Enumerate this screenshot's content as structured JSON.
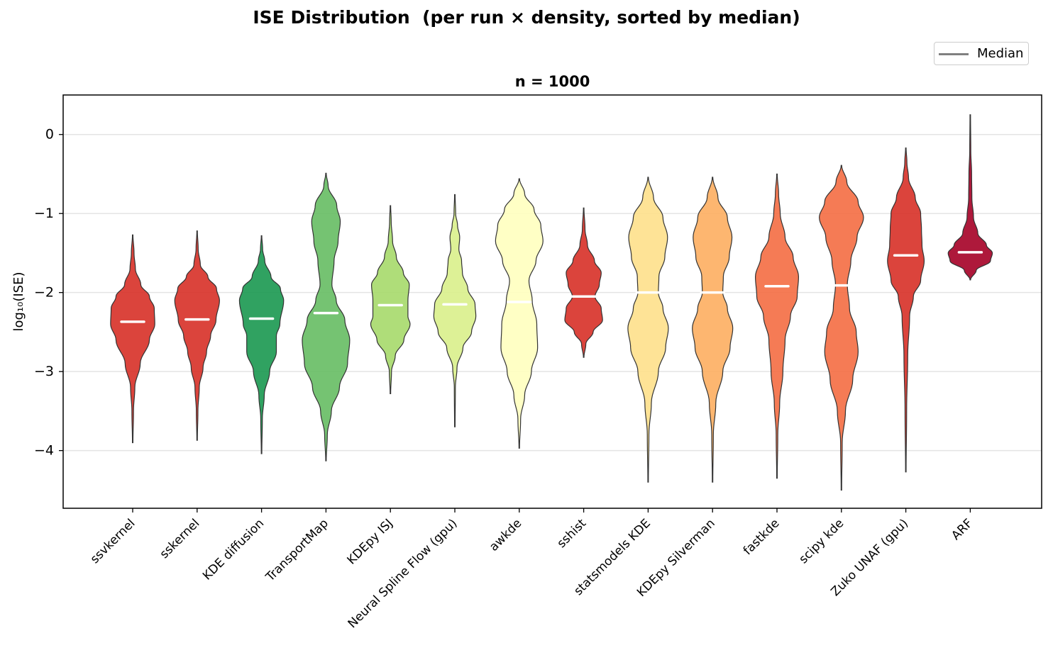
{
  "suptitle": "ISE Distribution  (per run × density, sorted by median)",
  "legend": {
    "label": "Median",
    "color": "#808080"
  },
  "chart_data": {
    "type": "violin",
    "title": "n = 1000",
    "xlabel": "",
    "ylabel": "log₁₀(ISE)",
    "ylim": [
      -4.73,
      0.5
    ],
    "yticks": [
      0,
      -1,
      -2,
      -3,
      -4
    ],
    "ytick_labels": [
      "0",
      "−1",
      "−2",
      "−3",
      "−4"
    ],
    "grid": "horizontal",
    "legend_position": "top-right",
    "categories": [
      "ssvkernel",
      "sskernel",
      "KDE diffusion",
      "TransportMap",
      "KDEpy ISJ",
      "Neural Spline Flow (gpu)",
      "awkde",
      "sshist",
      "statsmodels KDE",
      "KDEpy Silverman",
      "fastkde",
      "scipy kde",
      "Zuko UNAF (gpu)",
      "ARF"
    ],
    "series": [
      {
        "name": "ssvkernel",
        "color": "#d73027",
        "median": -2.37,
        "min": -3.9,
        "max": -1.27,
        "profile": [
          [
            -3.9,
            0.01
          ],
          [
            -3.5,
            0.03
          ],
          [
            -3.2,
            0.08
          ],
          [
            -2.9,
            0.28
          ],
          [
            -2.6,
            0.62
          ],
          [
            -2.4,
            0.82
          ],
          [
            -2.2,
            0.8
          ],
          [
            -2.05,
            0.62
          ],
          [
            -1.9,
            0.3
          ],
          [
            -1.7,
            0.1
          ],
          [
            -1.5,
            0.05
          ],
          [
            -1.27,
            0.01
          ]
        ]
      },
      {
        "name": "sskernel",
        "color": "#d73027",
        "median": -2.34,
        "min": -3.87,
        "max": -1.22,
        "profile": [
          [
            -3.87,
            0.01
          ],
          [
            -3.5,
            0.03
          ],
          [
            -3.2,
            0.08
          ],
          [
            -2.95,
            0.22
          ],
          [
            -2.75,
            0.35
          ],
          [
            -2.55,
            0.5
          ],
          [
            -2.35,
            0.7
          ],
          [
            -2.1,
            0.83
          ],
          [
            -1.95,
            0.72
          ],
          [
            -1.8,
            0.4
          ],
          [
            -1.65,
            0.12
          ],
          [
            -1.45,
            0.04
          ],
          [
            -1.22,
            0.01
          ]
        ]
      },
      {
        "name": "KDE diffusion",
        "color": "#1a9850",
        "median": -2.33,
        "min": -4.04,
        "max": -1.28,
        "profile": [
          [
            -4.04,
            0.01
          ],
          [
            -3.6,
            0.03
          ],
          [
            -3.3,
            0.1
          ],
          [
            -3.0,
            0.3
          ],
          [
            -2.75,
            0.55
          ],
          [
            -2.55,
            0.55
          ],
          [
            -2.4,
            0.68
          ],
          [
            -2.1,
            0.82
          ],
          [
            -1.95,
            0.7
          ],
          [
            -1.8,
            0.35
          ],
          [
            -1.6,
            0.12
          ],
          [
            -1.45,
            0.04
          ],
          [
            -1.28,
            0.01
          ]
        ]
      },
      {
        "name": "TransportMap",
        "color": "#66bd63",
        "median": -2.26,
        "min": -4.13,
        "max": -0.49,
        "profile": [
          [
            -4.13,
            0.01
          ],
          [
            -3.8,
            0.05
          ],
          [
            -3.5,
            0.2
          ],
          [
            -3.2,
            0.5
          ],
          [
            -2.9,
            0.8
          ],
          [
            -2.6,
            0.88
          ],
          [
            -2.35,
            0.7
          ],
          [
            -2.1,
            0.38
          ],
          [
            -1.9,
            0.22
          ],
          [
            -1.6,
            0.3
          ],
          [
            -1.35,
            0.45
          ],
          [
            -1.1,
            0.53
          ],
          [
            -0.9,
            0.4
          ],
          [
            -0.65,
            0.08
          ],
          [
            -0.49,
            0.01
          ]
        ]
      },
      {
        "name": "KDEpy ISJ",
        "color": "#a6d96a",
        "median": -2.16,
        "min": -3.28,
        "max": -0.9,
        "profile": [
          [
            -3.28,
            0.01
          ],
          [
            -3.0,
            0.04
          ],
          [
            -2.8,
            0.18
          ],
          [
            -2.6,
            0.5
          ],
          [
            -2.4,
            0.73
          ],
          [
            -2.3,
            0.65
          ],
          [
            -2.1,
            0.65
          ],
          [
            -1.9,
            0.7
          ],
          [
            -1.75,
            0.48
          ],
          [
            -1.55,
            0.22
          ],
          [
            -1.35,
            0.08
          ],
          [
            -1.1,
            0.03
          ],
          [
            -0.9,
            0.01
          ]
        ]
      },
      {
        "name": "Neural Spline Flow (gpu)",
        "color": "#d9ef8b",
        "median": -2.15,
        "min": -3.7,
        "max": -0.76,
        "profile": [
          [
            -3.7,
            0.01
          ],
          [
            -3.2,
            0.02
          ],
          [
            -2.95,
            0.08
          ],
          [
            -2.7,
            0.3
          ],
          [
            -2.5,
            0.62
          ],
          [
            -2.3,
            0.78
          ],
          [
            -2.15,
            0.75
          ],
          [
            -1.95,
            0.48
          ],
          [
            -1.75,
            0.28
          ],
          [
            -1.6,
            0.25
          ],
          [
            -1.45,
            0.15
          ],
          [
            -1.3,
            0.18
          ],
          [
            -1.15,
            0.1
          ],
          [
            -1.0,
            0.03
          ],
          [
            -0.76,
            0.01
          ]
        ]
      },
      {
        "name": "awkde",
        "color": "#ffffbf",
        "median": -2.12,
        "min": -3.97,
        "max": -0.56,
        "profile": [
          [
            -3.97,
            0.01
          ],
          [
            -3.6,
            0.05
          ],
          [
            -3.3,
            0.2
          ],
          [
            -3.0,
            0.45
          ],
          [
            -2.7,
            0.68
          ],
          [
            -2.4,
            0.65
          ],
          [
            -2.1,
            0.48
          ],
          [
            -1.85,
            0.36
          ],
          [
            -1.6,
            0.62
          ],
          [
            -1.35,
            0.88
          ],
          [
            -1.15,
            0.8
          ],
          [
            -0.95,
            0.55
          ],
          [
            -0.75,
            0.2
          ],
          [
            -0.56,
            0.01
          ]
        ]
      },
      {
        "name": "sshist",
        "color": "#d73027",
        "median": -2.05,
        "min": -2.82,
        "max": -0.93,
        "profile": [
          [
            -2.82,
            0.01
          ],
          [
            -2.65,
            0.08
          ],
          [
            -2.5,
            0.35
          ],
          [
            -2.35,
            0.7
          ],
          [
            -2.2,
            0.65
          ],
          [
            -2.05,
            0.42
          ],
          [
            -1.9,
            0.58
          ],
          [
            -1.75,
            0.65
          ],
          [
            -1.6,
            0.4
          ],
          [
            -1.4,
            0.14
          ],
          [
            -1.2,
            0.05
          ],
          [
            -0.93,
            0.01
          ]
        ]
      },
      {
        "name": "statsmodels KDE",
        "color": "#fee08b",
        "median": -2.0,
        "min": -4.4,
        "max": -0.54,
        "profile": [
          [
            -4.4,
            0.01
          ],
          [
            -3.8,
            0.03
          ],
          [
            -3.4,
            0.12
          ],
          [
            -3.0,
            0.38
          ],
          [
            -2.7,
            0.65
          ],
          [
            -2.45,
            0.75
          ],
          [
            -2.2,
            0.55
          ],
          [
            -2.0,
            0.38
          ],
          [
            -1.8,
            0.4
          ],
          [
            -1.55,
            0.62
          ],
          [
            -1.3,
            0.72
          ],
          [
            -1.05,
            0.55
          ],
          [
            -0.8,
            0.2
          ],
          [
            -0.54,
            0.01
          ]
        ]
      },
      {
        "name": "KDEpy Silverman",
        "color": "#fdae61",
        "median": -2.0,
        "min": -4.4,
        "max": -0.54,
        "profile": [
          [
            -4.4,
            0.01
          ],
          [
            -3.8,
            0.03
          ],
          [
            -3.4,
            0.12
          ],
          [
            -3.0,
            0.38
          ],
          [
            -2.7,
            0.65
          ],
          [
            -2.45,
            0.75
          ],
          [
            -2.2,
            0.55
          ],
          [
            -2.0,
            0.38
          ],
          [
            -1.8,
            0.4
          ],
          [
            -1.55,
            0.62
          ],
          [
            -1.3,
            0.72
          ],
          [
            -1.05,
            0.55
          ],
          [
            -0.8,
            0.2
          ],
          [
            -0.54,
            0.01
          ]
        ]
      },
      {
        "name": "fastkde",
        "color": "#f46d43",
        "median": -1.92,
        "min": -4.35,
        "max": -0.5,
        "profile": [
          [
            -4.35,
            0.01
          ],
          [
            -3.8,
            0.03
          ],
          [
            -3.4,
            0.1
          ],
          [
            -3.0,
            0.22
          ],
          [
            -2.6,
            0.3
          ],
          [
            -2.3,
            0.5
          ],
          [
            -2.05,
            0.75
          ],
          [
            -1.8,
            0.8
          ],
          [
            -1.55,
            0.6
          ],
          [
            -1.3,
            0.3
          ],
          [
            -1.0,
            0.12
          ],
          [
            -0.75,
            0.06
          ],
          [
            -0.5,
            0.01
          ]
        ]
      },
      {
        "name": "scipy kde",
        "color": "#f46d43",
        "median": -1.91,
        "min": -4.5,
        "max": -0.39,
        "profile": [
          [
            -4.5,
            0.01
          ],
          [
            -3.9,
            0.03
          ],
          [
            -3.5,
            0.15
          ],
          [
            -3.1,
            0.42
          ],
          [
            -2.75,
            0.62
          ],
          [
            -2.5,
            0.55
          ],
          [
            -2.2,
            0.3
          ],
          [
            -1.9,
            0.22
          ],
          [
            -1.6,
            0.35
          ],
          [
            -1.3,
            0.58
          ],
          [
            -1.05,
            0.82
          ],
          [
            -0.85,
            0.62
          ],
          [
            -0.6,
            0.2
          ],
          [
            -0.39,
            0.01
          ]
        ]
      },
      {
        "name": "Zuko UNAF (gpu)",
        "color": "#d73027",
        "median": -1.53,
        "min": -4.27,
        "max": -0.17,
        "profile": [
          [
            -4.27,
            0.01
          ],
          [
            -3.5,
            0.03
          ],
          [
            -2.8,
            0.07
          ],
          [
            -2.3,
            0.14
          ],
          [
            -2.05,
            0.28
          ],
          [
            -1.85,
            0.55
          ],
          [
            -1.6,
            0.68
          ],
          [
            -1.4,
            0.6
          ],
          [
            -1.2,
            0.58
          ],
          [
            -1.0,
            0.55
          ],
          [
            -0.8,
            0.35
          ],
          [
            -0.55,
            0.1
          ],
          [
            -0.35,
            0.04
          ],
          [
            -0.17,
            0.01
          ]
        ]
      },
      {
        "name": "ARF",
        "color": "#a50026",
        "median": -1.49,
        "min": -1.84,
        "max": 0.25,
        "profile": [
          [
            -1.84,
            0.01
          ],
          [
            -1.72,
            0.22
          ],
          [
            -1.6,
            0.75
          ],
          [
            -1.5,
            0.82
          ],
          [
            -1.4,
            0.6
          ],
          [
            -1.25,
            0.28
          ],
          [
            -1.05,
            0.12
          ],
          [
            -0.8,
            0.06
          ],
          [
            -0.5,
            0.05
          ],
          [
            -0.2,
            0.02
          ],
          [
            0.25,
            0.01
          ]
        ]
      }
    ]
  }
}
